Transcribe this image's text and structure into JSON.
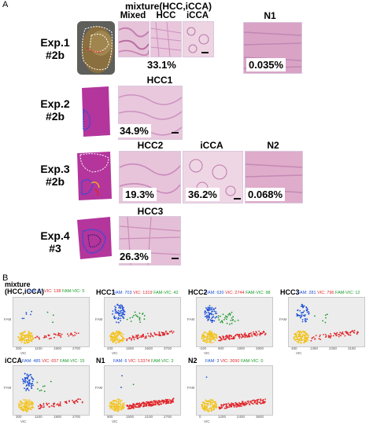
{
  "panel_a": {
    "letter": "A",
    "header_top": "mixture(HCC,iCCA)",
    "header_cols": [
      "Mixed",
      "HCC",
      "iCCA"
    ],
    "header_n1": "N1",
    "exp1": {
      "line1": "Exp.1",
      "line2": "#2b",
      "pct_main": "33.1%",
      "pct_n1": "0.035%"
    },
    "exp2": {
      "line1": "Exp.2",
      "line2": "#2b",
      "col": "HCC1",
      "pct": "34.9%"
    },
    "exp3": {
      "line1": "Exp.3",
      "line2": "#2b",
      "cols": [
        "HCC2",
        "iCCA",
        "N2"
      ],
      "pcts": [
        "19.3%",
        "36.2%",
        "0.068%"
      ]
    },
    "exp4": {
      "line1": "Exp.4",
      "line2": "#3",
      "col": "HCC3",
      "pct": "26.3%"
    }
  },
  "panel_b": {
    "letter": "B",
    "plots": [
      {
        "title": "mixture\n(HCC,iCCA)",
        "fam": "FAM: 51",
        "vic": "VIC: 138",
        "famvic": "FAM-VIC: 5",
        "xticks": [
          "300",
          "1100",
          "1900",
          "2700"
        ]
      },
      {
        "title": "HCC1",
        "fam": "FAM: 703",
        "vic": "VIC: 1319",
        "famvic": "FAM-VIC: 42",
        "xticks": [
          "400",
          "1500",
          "2600",
          "3700"
        ]
      },
      {
        "title": "HCC2",
        "fam": "FAM: 630",
        "vic": "VIC: 2744",
        "famvic": "FAM-VIC: 98",
        "xticks": [
          "-100",
          "900",
          "1900",
          "2900"
        ]
      },
      {
        "title": "HCC3",
        "fam": "FAM: 281",
        "vic": "VIC: 796",
        "famvic": "FAM-VIC: 12",
        "xticks": [
          "480",
          "1380",
          "2280",
          "3180"
        ]
      },
      {
        "title": "iCCA",
        "fam": "FAM: 485",
        "vic": "VIC: 657",
        "famvic": "FAM-VIC: 15",
        "xticks": [
          "300",
          "1100",
          "1900",
          "2700"
        ]
      },
      {
        "title": "N1",
        "fam": "FAM: 6",
        "vic": "VIC: 13374",
        "famvic": "FAM-VIC: 3",
        "xticks": [
          "900",
          "1500",
          "2100",
          "2700"
        ]
      },
      {
        "title": "N2",
        "fam": "FAM: 3",
        "vic": "VIC: 3690",
        "famvic": "FAM-VIC: 0",
        "xticks": [
          "0",
          "1200",
          "2400",
          "3600"
        ]
      }
    ],
    "axis_x": "VIC",
    "axis_y": "FAM"
  },
  "colors": {
    "fam": "#1d4fd6",
    "vic": "#e0262a",
    "famvic": "#1a9a2a",
    "neg": "#f2c21a",
    "he_pink": "#d6a6c8",
    "slide_magenta": "#b4359c"
  }
}
